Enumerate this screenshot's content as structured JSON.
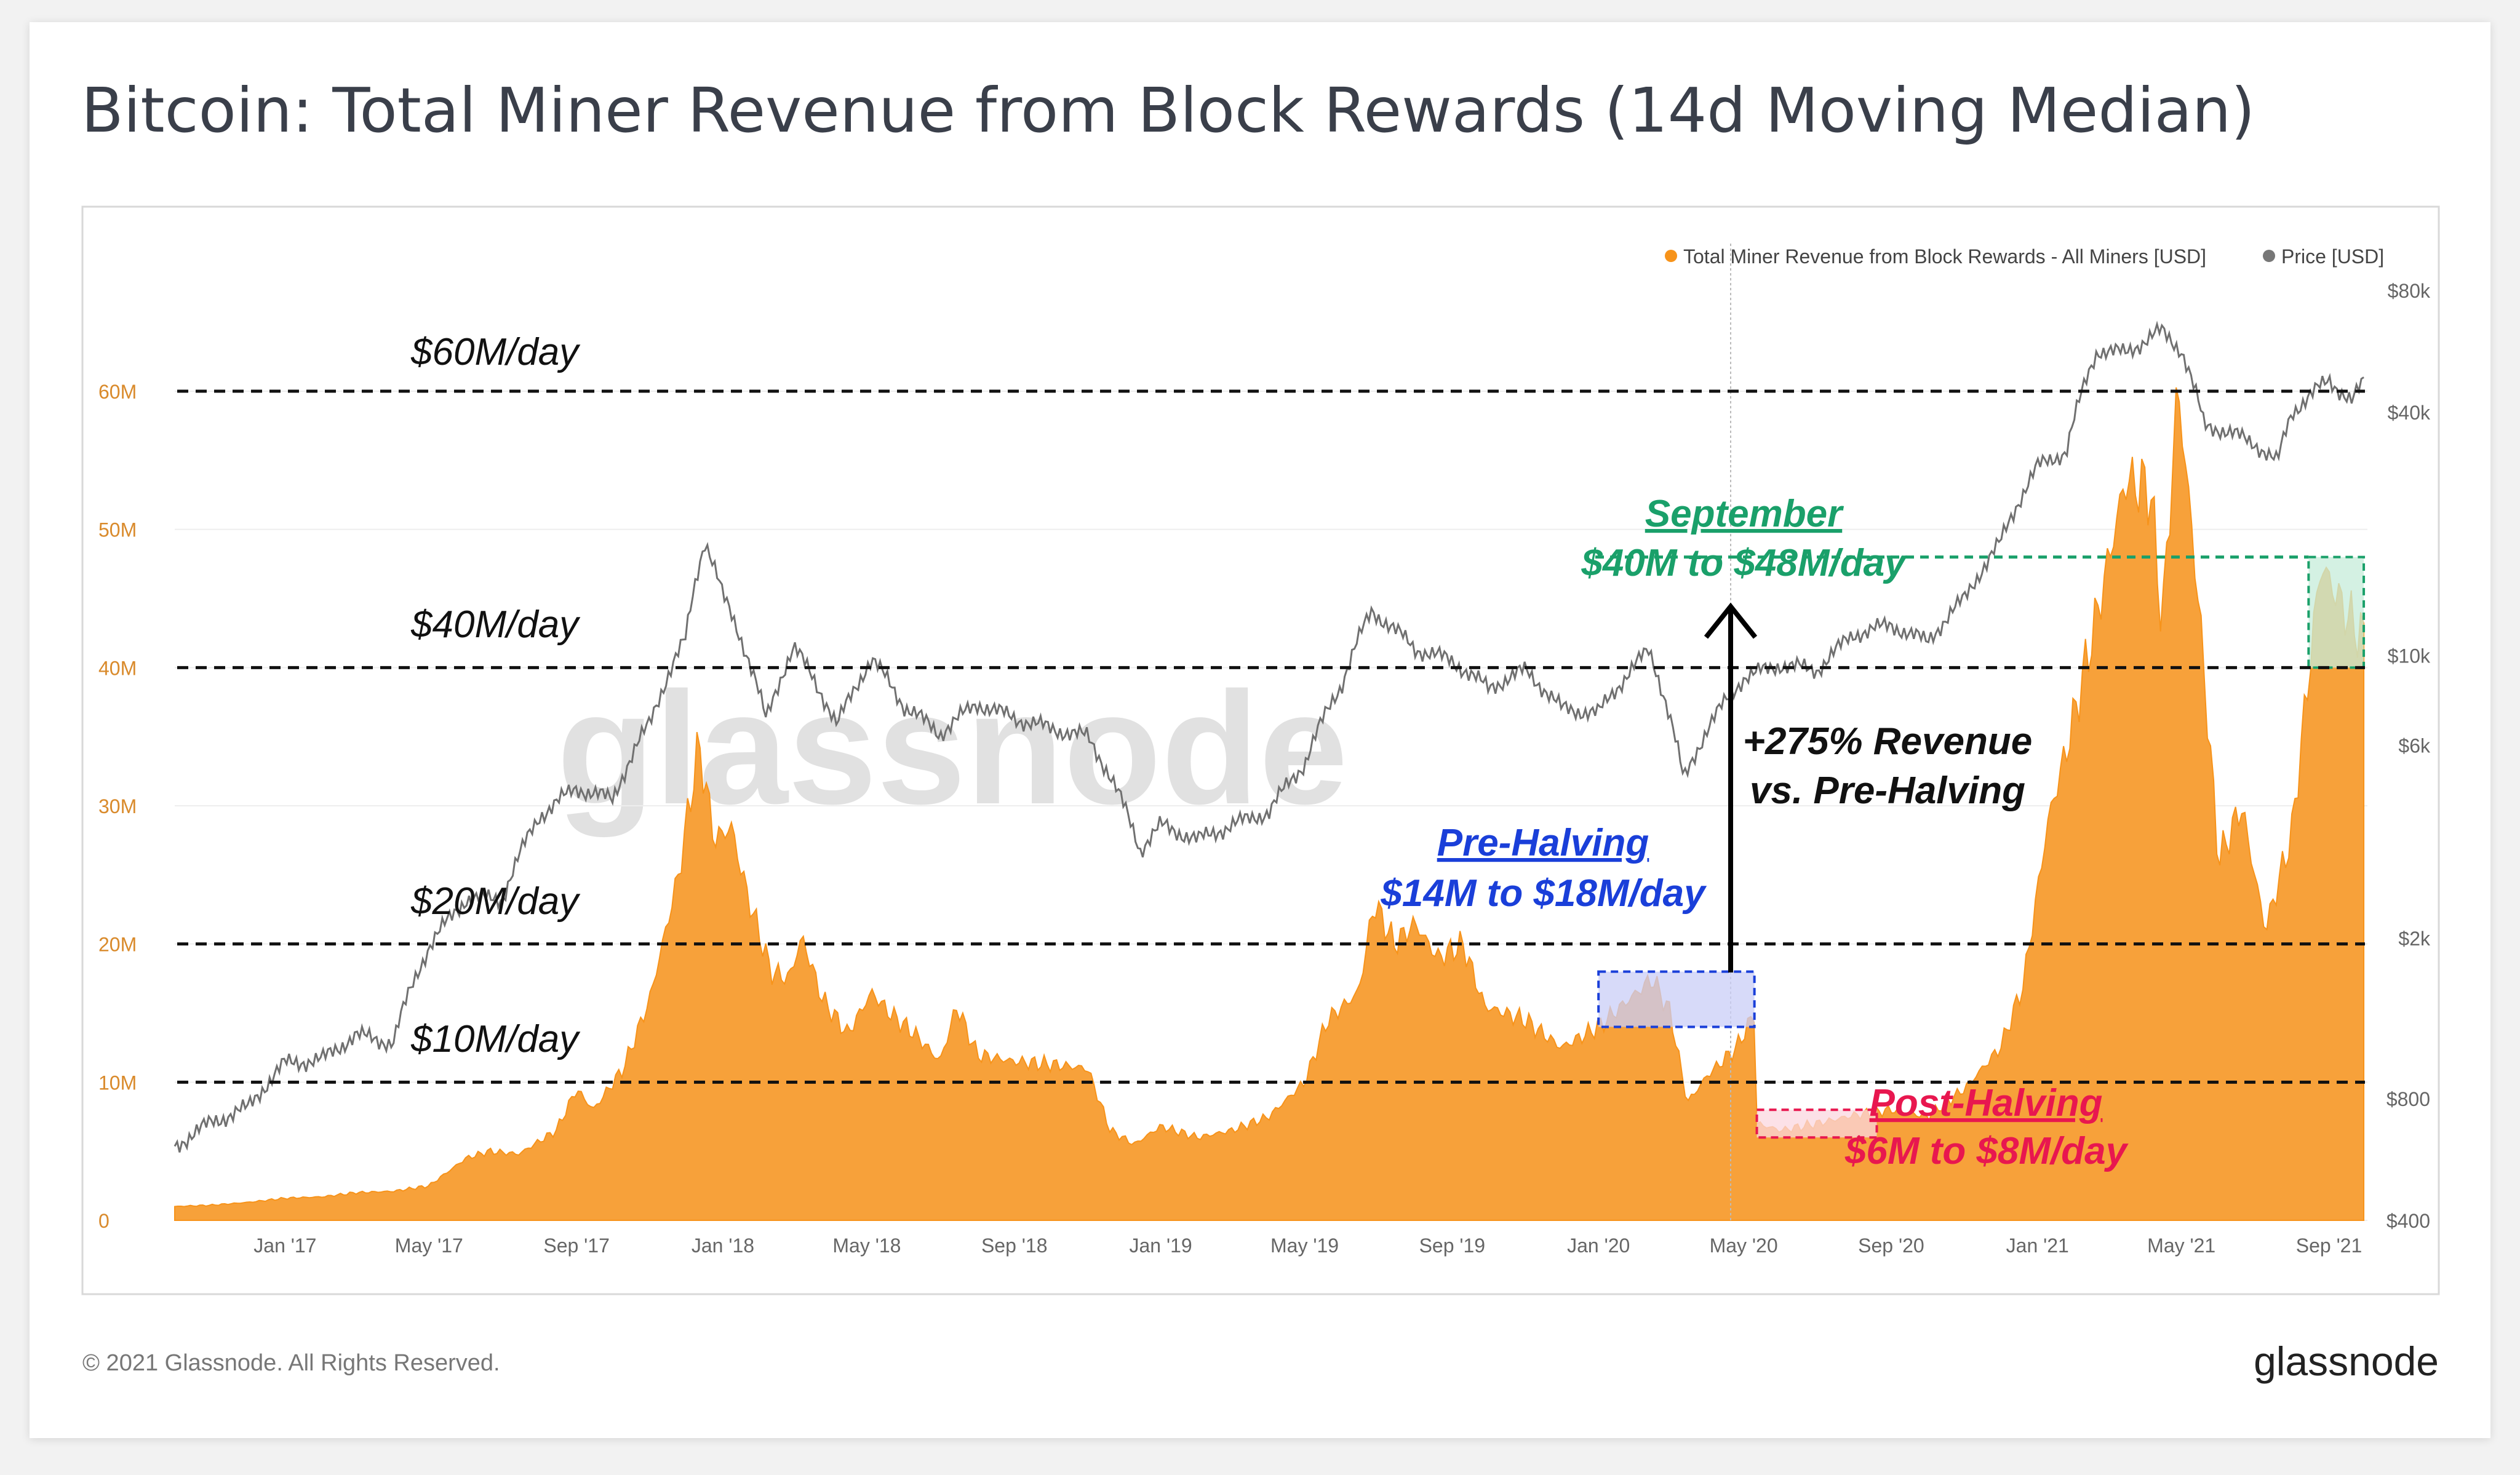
{
  "page": {
    "title": "Bitcoin: Total Miner Revenue from Block Rewards (14d Moving Median)",
    "footer_copyright": "© 2021 Glassnode. All Rights Reserved.",
    "footer_brand": "glassnode",
    "watermark": "glassnode"
  },
  "colors": {
    "revenue": "#f7931a",
    "revenue_fill": "#f7a13a",
    "price_line": "#707070",
    "guide_line": "#111111",
    "pre_halving": "#1a3fd9",
    "post_halving": "#e8174f",
    "september": "#1aa06a",
    "axis_text": "#666666",
    "revenue_axis_text": "#d98a2b"
  },
  "legend": {
    "revenue": "Total Miner Revenue from Block Rewards - All Miners [USD]",
    "price": "Price [USD]"
  },
  "annotations": {
    "line_60": "$60M/day",
    "line_40": "$40M/day",
    "line_20": "$20M/day",
    "line_10": "$10M/day",
    "pre_halving_title": "Pre-Halving",
    "pre_halving_range": "$14M to $18M/day",
    "post_halving_title": "Post-Halving",
    "post_halving_range": "$6M to $8M/day",
    "september_title": "September",
    "september_range": "$40M to $48M/day",
    "growth_line1": "+275% Revenue",
    "growth_line2": "vs. Pre-Halving"
  },
  "chart_data": {
    "type": "area",
    "title": "Bitcoin: Total Miner Revenue from Block Rewards (14d Moving Median)",
    "x_ticks": [
      "Jan '17",
      "May '17",
      "Sep '17",
      "Jan '18",
      "May '18",
      "Sep '18",
      "Jan '19",
      "May '19",
      "Sep '19",
      "Jan '20",
      "May '20",
      "Sep '20",
      "Jan '21",
      "May '21",
      "Sep '21"
    ],
    "x_range": [
      "2016-10-01",
      "2021-10-01"
    ],
    "y_left": {
      "ticks": [
        "0",
        "10M",
        "20M",
        "30M",
        "40M",
        "50M",
        "60M"
      ],
      "range": [
        0,
        70
      ]
    },
    "y_right": {
      "scale": "log",
      "ticks": [
        "$400",
        "$800",
        "$2k",
        "$6k",
        "$10k",
        "$40k",
        "$80k"
      ],
      "range": [
        400,
        80000
      ]
    },
    "series": [
      {
        "name": "Total Miner Revenue from Block Rewards - All Miners [USD]",
        "unit": "M USD",
        "axis": "left",
        "points": [
          [
            "2016-10-01",
            1.0
          ],
          [
            "2016-11-01",
            1.1
          ],
          [
            "2016-12-01",
            1.3
          ],
          [
            "2017-01-01",
            1.6
          ],
          [
            "2017-02-01",
            1.7
          ],
          [
            "2017-03-01",
            2.0
          ],
          [
            "2017-04-01",
            2.1
          ],
          [
            "2017-05-01",
            2.5
          ],
          [
            "2017-06-01",
            4.5
          ],
          [
            "2017-06-20",
            5.0
          ],
          [
            "2017-07-15",
            4.8
          ],
          [
            "2017-08-15",
            6.5
          ],
          [
            "2017-09-01",
            9.5
          ],
          [
            "2017-09-15",
            8.0
          ],
          [
            "2017-10-10",
            11.0
          ],
          [
            "2017-11-01",
            16.0
          ],
          [
            "2017-11-25",
            25.0
          ],
          [
            "2017-12-12",
            34.5
          ],
          [
            "2017-12-25",
            27.5
          ],
          [
            "2018-01-08",
            28.5
          ],
          [
            "2018-01-20",
            24.0
          ],
          [
            "2018-02-10",
            18.0
          ],
          [
            "2018-02-25",
            17.5
          ],
          [
            "2018-03-08",
            20.5
          ],
          [
            "2018-03-25",
            16.0
          ],
          [
            "2018-04-15",
            13.5
          ],
          [
            "2018-05-05",
            16.5
          ],
          [
            "2018-05-20",
            15.0
          ],
          [
            "2018-06-10",
            13.5
          ],
          [
            "2018-07-01",
            11.5
          ],
          [
            "2018-07-15",
            15.5
          ],
          [
            "2018-08-01",
            12.0
          ],
          [
            "2018-09-01",
            11.5
          ],
          [
            "2018-10-01",
            11.3
          ],
          [
            "2018-11-01",
            11.0
          ],
          [
            "2018-11-20",
            6.5
          ],
          [
            "2018-12-10",
            5.5
          ],
          [
            "2019-01-01",
            6.8
          ],
          [
            "2019-02-01",
            6.0
          ],
          [
            "2019-03-01",
            6.5
          ],
          [
            "2019-04-01",
            7.5
          ],
          [
            "2019-05-01",
            10.0
          ],
          [
            "2019-05-20",
            14.5
          ],
          [
            "2019-06-15",
            16.5
          ],
          [
            "2019-06-28",
            23.0
          ],
          [
            "2019-07-15",
            20.0
          ],
          [
            "2019-08-01",
            21.5
          ],
          [
            "2019-08-20",
            19.0
          ],
          [
            "2019-09-10",
            20.0
          ],
          [
            "2019-09-28",
            15.5
          ],
          [
            "2019-11-01",
            14.5
          ],
          [
            "2019-12-01",
            12.5
          ],
          [
            "2020-01-01",
            14.0
          ],
          [
            "2020-02-15",
            17.5
          ],
          [
            "2020-03-01",
            15.0
          ],
          [
            "2020-03-15",
            8.5
          ],
          [
            "2020-04-01",
            10.5
          ],
          [
            "2020-04-25",
            12.5
          ],
          [
            "2020-05-10",
            15.0
          ],
          [
            "2020-05-12",
            7.0
          ],
          [
            "2020-06-01",
            6.5
          ],
          [
            "2020-07-01",
            7.0
          ],
          [
            "2020-08-01",
            7.6
          ],
          [
            "2020-09-01",
            8.0
          ],
          [
            "2020-10-01",
            7.5
          ],
          [
            "2020-11-01",
            9.5
          ],
          [
            "2020-12-01",
            12.5
          ],
          [
            "2020-12-20",
            17.0
          ],
          [
            "2021-01-10",
            29.0
          ],
          [
            "2021-01-25",
            34.0
          ],
          [
            "2021-02-20",
            44.0
          ],
          [
            "2021-03-15",
            53.5
          ],
          [
            "2021-04-05",
            53.0
          ],
          [
            "2021-04-15",
            43.0
          ],
          [
            "2021-04-28",
            60.5
          ],
          [
            "2021-05-15",
            45.0
          ],
          [
            "2021-06-01",
            26.0
          ],
          [
            "2021-06-20",
            30.0
          ],
          [
            "2021-07-10",
            21.0
          ],
          [
            "2021-08-01",
            28.0
          ],
          [
            "2021-08-25",
            47.5
          ],
          [
            "2021-09-15",
            44.0
          ],
          [
            "2021-09-30",
            42.0
          ]
        ]
      },
      {
        "name": "Price [USD]",
        "unit": "USD",
        "axis": "right",
        "points": [
          [
            "2016-10-01",
            610
          ],
          [
            "2016-11-01",
            700
          ],
          [
            "2016-12-01",
            760
          ],
          [
            "2017-01-01",
            980
          ],
          [
            "2017-02-01",
            1000
          ],
          [
            "2017-03-01",
            1150
          ],
          [
            "2017-04-01",
            1100
          ],
          [
            "2017-05-01",
            1900
          ],
          [
            "2017-06-01",
            2500
          ],
          [
            "2017-07-01",
            2500
          ],
          [
            "2017-08-01",
            4000
          ],
          [
            "2017-09-01",
            4700
          ],
          [
            "2017-10-01",
            4400
          ],
          [
            "2017-11-01",
            6800
          ],
          [
            "2017-12-01",
            11000
          ],
          [
            "2017-12-17",
            19300
          ],
          [
            "2018-01-01",
            14000
          ],
          [
            "2018-02-06",
            6900
          ],
          [
            "2018-03-01",
            10500
          ],
          [
            "2018-04-06",
            6700
          ],
          [
            "2018-05-05",
            9800
          ],
          [
            "2018-06-01",
            7500
          ],
          [
            "2018-07-01",
            6400
          ],
          [
            "2018-08-01",
            7600
          ],
          [
            "2018-09-01",
            7000
          ],
          [
            "2018-10-01",
            6600
          ],
          [
            "2018-11-01",
            6300
          ],
          [
            "2018-12-15",
            3300
          ],
          [
            "2019-01-01",
            3800
          ],
          [
            "2019-02-01",
            3500
          ],
          [
            "2019-03-01",
            3800
          ],
          [
            "2019-04-01",
            4100
          ],
          [
            "2019-05-01",
            5400
          ],
          [
            "2019-06-01",
            8500
          ],
          [
            "2019-06-26",
            12900
          ],
          [
            "2019-08-01",
            10400
          ],
          [
            "2019-09-01",
            9700
          ],
          [
            "2019-10-01",
            8300
          ],
          [
            "2019-11-01",
            9200
          ],
          [
            "2019-12-01",
            7400
          ],
          [
            "2020-01-01",
            7200
          ],
          [
            "2020-02-12",
            10300
          ],
          [
            "2020-03-12",
            4900
          ],
          [
            "2020-04-01",
            6600
          ],
          [
            "2020-05-01",
            8800
          ],
          [
            "2020-06-01",
            9500
          ],
          [
            "2020-07-01",
            9200
          ],
          [
            "2020-08-01",
            11300
          ],
          [
            "2020-09-01",
            11900
          ],
          [
            "2020-10-01",
            10800
          ],
          [
            "2020-11-01",
            13800
          ],
          [
            "2020-12-01",
            19000
          ],
          [
            "2021-01-01",
            29300
          ],
          [
            "2021-01-25",
            32000
          ],
          [
            "2021-02-20",
            57000
          ],
          [
            "2021-03-15",
            56000
          ],
          [
            "2021-04-14",
            63500
          ],
          [
            "2021-05-01",
            57000
          ],
          [
            "2021-05-20",
            37000
          ],
          [
            "2021-06-01",
            36500
          ],
          [
            "2021-07-01",
            33500
          ],
          [
            "2021-07-20",
            30000
          ],
          [
            "2021-08-01",
            40000
          ],
          [
            "2021-09-01",
            48000
          ],
          [
            "2021-09-20",
            42500
          ],
          [
            "2021-09-30",
            47500
          ]
        ]
      }
    ],
    "reference_lines": [
      60,
      40,
      20,
      10
    ],
    "highlight_ranges": [
      {
        "label": "Pre-Halving",
        "start": "2020-01-01",
        "end": "2020-05-10",
        "y_from": 14,
        "y_to": 18
      },
      {
        "label": "Post-Halving",
        "start": "2020-05-12",
        "end": "2020-08-20",
        "y_from": 6,
        "y_to": 8
      },
      {
        "label": "September",
        "start": "2021-08-15",
        "end": "2021-09-30",
        "y_from": 40,
        "y_to": 48
      }
    ],
    "grid": true,
    "legend_position": "top-right"
  }
}
